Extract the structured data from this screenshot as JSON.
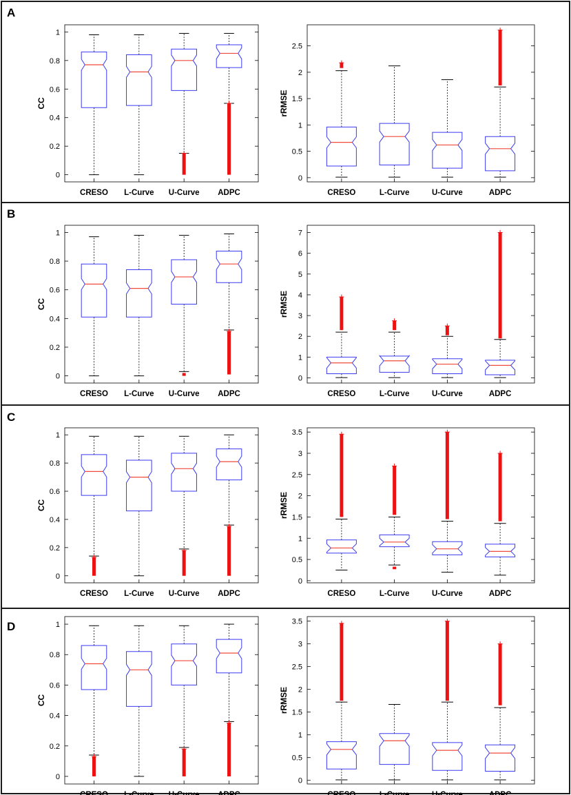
{
  "colors": {
    "box": "#3a3af0",
    "median": "#f04a3a",
    "whisker": "#000000",
    "outlier": "#ee1111",
    "frame": "#000000",
    "panel_border": "#1a1a1a"
  },
  "categories": [
    "CRESO",
    "L-Curve",
    "U-Curve",
    "ADPC"
  ],
  "chart_data": [
    {
      "type": "boxplot",
      "panel": "A",
      "ylabel": "CC",
      "ylim": [
        -0.05,
        1.05
      ],
      "yticks": [
        0,
        0.2,
        0.4,
        0.6,
        0.8,
        1
      ],
      "ytick_labels": [
        "0",
        "0.2",
        "0.4",
        "0.6",
        "0.8",
        "1"
      ],
      "categories": [
        "CRESO",
        "L-Curve",
        "U-Curve",
        "ADPC"
      ],
      "boxes": [
        {
          "name": "CRESO",
          "q1": 0.47,
          "median": 0.77,
          "q3": 0.86,
          "whisker_low": 0.0,
          "whisker_high": 0.98,
          "outliers": []
        },
        {
          "name": "L-Curve",
          "q1": 0.485,
          "median": 0.72,
          "q3": 0.84,
          "whisker_low": 0.0,
          "whisker_high": 0.98,
          "outliers": []
        },
        {
          "name": "U-Curve",
          "q1": 0.59,
          "median": 0.8,
          "q3": 0.88,
          "whisker_low": 0.15,
          "whisker_high": 0.99,
          "outliers": [
            [
              0.0,
              0.15
            ]
          ]
        },
        {
          "name": "ADPC",
          "q1": 0.75,
          "median": 0.85,
          "q3": 0.91,
          "whisker_low": 0.5,
          "whisker_high": 0.99,
          "outliers": [
            [
              0.0,
              0.5
            ]
          ]
        }
      ]
    },
    {
      "type": "boxplot",
      "panel": "A",
      "ylabel": "rRMSE",
      "ylim": [
        -0.08,
        2.9
      ],
      "yticks": [
        0,
        0.5,
        1,
        1.5,
        2,
        2.5
      ],
      "ytick_labels": [
        "0",
        "0.5",
        "1",
        "1.5",
        "2",
        "2.5"
      ],
      "categories": [
        "CRESO",
        "L-Curve",
        "U-Curve",
        "ADPC"
      ],
      "boxes": [
        {
          "name": "CRESO",
          "q1": 0.22,
          "median": 0.67,
          "q3": 0.96,
          "whisker_low": 0.01,
          "whisker_high": 2.03,
          "outliers": [
            [
              2.08,
              2.18
            ]
          ]
        },
        {
          "name": "L-Curve",
          "q1": 0.24,
          "median": 0.78,
          "q3": 1.03,
          "whisker_low": 0.01,
          "whisker_high": 2.12,
          "outliers": []
        },
        {
          "name": "U-Curve",
          "q1": 0.18,
          "median": 0.62,
          "q3": 0.86,
          "whisker_low": 0.01,
          "whisker_high": 1.86,
          "outliers": []
        },
        {
          "name": "ADPC",
          "q1": 0.13,
          "median": 0.55,
          "q3": 0.78,
          "whisker_low": 0.01,
          "whisker_high": 1.72,
          "outliers": [
            [
              1.75,
              2.8
            ]
          ]
        }
      ]
    },
    {
      "type": "boxplot",
      "panel": "B",
      "ylabel": "CC",
      "ylim": [
        -0.05,
        1.05
      ],
      "yticks": [
        0,
        0.2,
        0.4,
        0.6,
        0.8,
        1
      ],
      "ytick_labels": [
        "0",
        "0.2",
        "0.4",
        "0.6",
        "0.8",
        "1"
      ],
      "categories": [
        "CRESO",
        "L-Curve",
        "U-Curve",
        "ADPC"
      ],
      "boxes": [
        {
          "name": "CRESO",
          "q1": 0.41,
          "median": 0.64,
          "q3": 0.78,
          "whisker_low": 0.0,
          "whisker_high": 0.97,
          "outliers": []
        },
        {
          "name": "L-Curve",
          "q1": 0.41,
          "median": 0.61,
          "q3": 0.74,
          "whisker_low": 0.0,
          "whisker_high": 0.98,
          "outliers": []
        },
        {
          "name": "U-Curve",
          "q1": 0.5,
          "median": 0.69,
          "q3": 0.81,
          "whisker_low": 0.03,
          "whisker_high": 0.98,
          "outliers": [
            [
              0.0,
              0.02
            ]
          ]
        },
        {
          "name": "ADPC",
          "q1": 0.65,
          "median": 0.78,
          "q3": 0.87,
          "whisker_low": 0.32,
          "whisker_high": 0.99,
          "outliers": [
            [
              0.01,
              0.31
            ]
          ]
        }
      ]
    },
    {
      "type": "boxplot",
      "panel": "B",
      "ylabel": "rRMSE",
      "ylim": [
        -0.25,
        7.35
      ],
      "yticks": [
        0,
        1,
        2,
        3,
        4,
        5,
        6,
        7
      ],
      "ytick_labels": [
        "0",
        "1",
        "2",
        "3",
        "4",
        "5",
        "6",
        "7"
      ],
      "categories": [
        "CRESO",
        "L-Curve",
        "U-Curve",
        "ADPC"
      ],
      "boxes": [
        {
          "name": "CRESO",
          "q1": 0.2,
          "median": 0.72,
          "q3": 1.0,
          "whisker_low": 0.01,
          "whisker_high": 2.2,
          "outliers": [
            [
              2.3,
              3.9
            ]
          ]
        },
        {
          "name": "L-Curve",
          "q1": 0.27,
          "median": 0.82,
          "q3": 1.05,
          "whisker_low": 0.01,
          "whisker_high": 2.2,
          "outliers": [
            [
              2.3,
              2.75
            ]
          ]
        },
        {
          "name": "U-Curve",
          "q1": 0.2,
          "median": 0.66,
          "q3": 0.92,
          "whisker_low": 0.01,
          "whisker_high": 2.0,
          "outliers": [
            [
              2.05,
              2.5
            ]
          ]
        },
        {
          "name": "ADPC",
          "q1": 0.15,
          "median": 0.6,
          "q3": 0.85,
          "whisker_low": 0.01,
          "whisker_high": 1.85,
          "outliers": [
            [
              1.9,
              7.0
            ]
          ]
        }
      ]
    },
    {
      "type": "boxplot",
      "panel": "C",
      "ylabel": "CC",
      "ylim": [
        -0.05,
        1.05
      ],
      "yticks": [
        0,
        0.2,
        0.4,
        0.6,
        0.8,
        1
      ],
      "ytick_labels": [
        "0",
        "0.2",
        "0.4",
        "0.6",
        "0.8",
        "1"
      ],
      "categories": [
        "CRESO",
        "L-Curve",
        "U-Curve",
        "ADPC"
      ],
      "boxes": [
        {
          "name": "CRESO",
          "q1": 0.57,
          "median": 0.74,
          "q3": 0.86,
          "whisker_low": 0.14,
          "whisker_high": 0.99,
          "outliers": [
            [
              0.0,
              0.13
            ]
          ]
        },
        {
          "name": "L-Curve",
          "q1": 0.46,
          "median": 0.7,
          "q3": 0.82,
          "whisker_low": 0.0,
          "whisker_high": 0.99,
          "outliers": []
        },
        {
          "name": "U-Curve",
          "q1": 0.6,
          "median": 0.76,
          "q3": 0.87,
          "whisker_low": 0.19,
          "whisker_high": 0.99,
          "outliers": [
            [
              0.0,
              0.18
            ]
          ]
        },
        {
          "name": "ADPC",
          "q1": 0.68,
          "median": 0.81,
          "q3": 0.9,
          "whisker_low": 0.36,
          "whisker_high": 1.0,
          "outliers": [
            [
              0.0,
              0.35
            ]
          ]
        }
      ]
    },
    {
      "type": "boxplot",
      "panel": "C",
      "ylabel": "rRMSE",
      "ylim": [
        -0.05,
        3.6
      ],
      "yticks": [
        0,
        0.5,
        1,
        1.5,
        2,
        2.5,
        3,
        3.5
      ],
      "ytick_labels": [
        "0",
        "0.5",
        "1",
        "1.5",
        "2",
        "2.5",
        "3",
        "3.5"
      ],
      "categories": [
        "CRESO",
        "L-Curve",
        "U-Curve",
        "ADPC"
      ],
      "boxes": [
        {
          "name": "CRESO",
          "q1": 0.65,
          "median": 0.77,
          "q3": 0.96,
          "whisker_low": 0.25,
          "whisker_high": 1.45,
          "outliers": [
            [
              1.5,
              3.45
            ]
          ]
        },
        {
          "name": "L-Curve",
          "q1": 0.8,
          "median": 0.91,
          "q3": 1.08,
          "whisker_low": 0.37,
          "whisker_high": 1.5,
          "outliers": [
            [
              0.27,
              0.33
            ],
            [
              1.55,
              2.7
            ]
          ]
        },
        {
          "name": "U-Curve",
          "q1": 0.61,
          "median": 0.75,
          "q3": 0.92,
          "whisker_low": 0.2,
          "whisker_high": 1.4,
          "outliers": [
            [
              1.45,
              3.5
            ]
          ]
        },
        {
          "name": "ADPC",
          "q1": 0.56,
          "median": 0.69,
          "q3": 0.86,
          "whisker_low": 0.13,
          "whisker_high": 1.35,
          "outliers": [
            [
              1.4,
              3.0
            ]
          ]
        }
      ]
    },
    {
      "type": "boxplot",
      "panel": "D",
      "ylabel": "CC",
      "ylim": [
        -0.05,
        1.05
      ],
      "yticks": [
        0,
        0.2,
        0.4,
        0.6,
        0.8,
        1
      ],
      "ytick_labels": [
        "0",
        "0.2",
        "0.4",
        "0.6",
        "0.8",
        "1"
      ],
      "categories": [
        "CRESO",
        "L-Curve",
        "U-Curve",
        "ADPC"
      ],
      "boxes": [
        {
          "name": "CRESO",
          "q1": 0.57,
          "median": 0.74,
          "q3": 0.86,
          "whisker_low": 0.14,
          "whisker_high": 0.99,
          "outliers": [
            [
              0.0,
              0.13
            ]
          ]
        },
        {
          "name": "L-Curve",
          "q1": 0.46,
          "median": 0.7,
          "q3": 0.82,
          "whisker_low": 0.0,
          "whisker_high": 0.99,
          "outliers": []
        },
        {
          "name": "U-Curve",
          "q1": 0.6,
          "median": 0.76,
          "q3": 0.87,
          "whisker_low": 0.19,
          "whisker_high": 0.99,
          "outliers": [
            [
              0.0,
              0.18
            ]
          ]
        },
        {
          "name": "ADPC",
          "q1": 0.68,
          "median": 0.81,
          "q3": 0.9,
          "whisker_low": 0.36,
          "whisker_high": 1.0,
          "outliers": [
            [
              0.0,
              0.35
            ]
          ]
        }
      ]
    },
    {
      "type": "boxplot",
      "panel": "D",
      "ylabel": "rRMSE",
      "ylim": [
        -0.08,
        3.6
      ],
      "yticks": [
        0,
        0.5,
        1,
        1.5,
        2,
        2.5,
        3,
        3.5
      ],
      "ytick_labels": [
        "0",
        "0.5",
        "1",
        "1.5",
        "2",
        "2.5",
        "3",
        "3.5"
      ],
      "categories": [
        "CRESO",
        "L-Curve",
        "U-Curve",
        "ADPC"
      ],
      "boxes": [
        {
          "name": "CRESO",
          "q1": 0.25,
          "median": 0.68,
          "q3": 0.85,
          "whisker_low": 0.01,
          "whisker_high": 1.72,
          "outliers": [
            [
              1.75,
              3.45
            ]
          ]
        },
        {
          "name": "L-Curve",
          "q1": 0.35,
          "median": 0.87,
          "q3": 1.03,
          "whisker_low": 0.01,
          "whisker_high": 1.67,
          "outliers": []
        },
        {
          "name": "U-Curve",
          "q1": 0.22,
          "median": 0.66,
          "q3": 0.83,
          "whisker_low": 0.01,
          "whisker_high": 1.72,
          "outliers": [
            [
              1.75,
              3.5
            ]
          ]
        },
        {
          "name": "ADPC",
          "q1": 0.2,
          "median": 0.6,
          "q3": 0.78,
          "whisker_low": 0.01,
          "whisker_high": 1.6,
          "outliers": [
            [
              1.65,
              3.0
            ]
          ]
        }
      ]
    }
  ],
  "panels": [
    {
      "label": "A"
    },
    {
      "label": "B"
    },
    {
      "label": "C"
    },
    {
      "label": "D"
    }
  ]
}
